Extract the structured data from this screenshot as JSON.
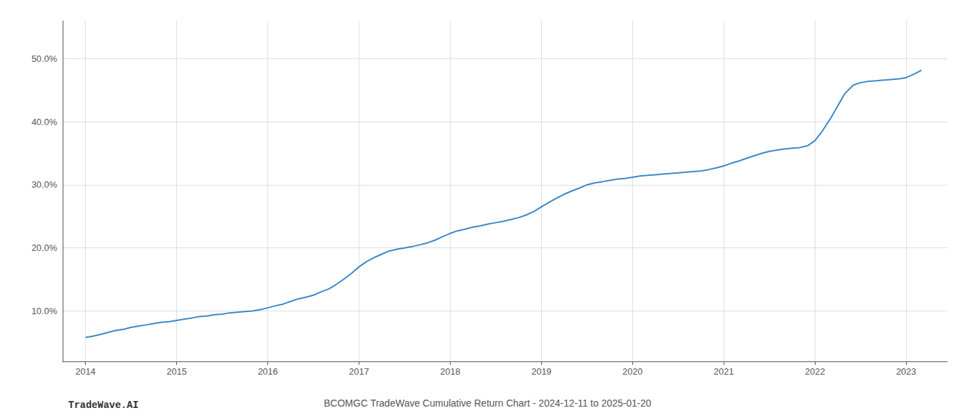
{
  "chart_data": {
    "type": "line",
    "title": "BCOMGC TradeWave Cumulative Return Chart - 2024-12-11 to 2025-01-20",
    "annotations": [
      "TradeWave.AI"
    ],
    "color": "#3a87c8",
    "grid": true,
    "x": [
      2014.0,
      2014.08,
      2014.17,
      2014.25,
      2014.33,
      2014.42,
      2014.5,
      2014.58,
      2014.67,
      2014.75,
      2014.83,
      2014.92,
      2015.0,
      2015.08,
      2015.17,
      2015.25,
      2015.33,
      2015.42,
      2015.5,
      2015.58,
      2015.67,
      2015.75,
      2015.83,
      2015.92,
      2016.0,
      2016.08,
      2016.17,
      2016.25,
      2016.33,
      2016.42,
      2016.5,
      2016.58,
      2016.67,
      2016.75,
      2016.83,
      2016.92,
      2017.0,
      2017.08,
      2017.17,
      2017.25,
      2017.33,
      2017.42,
      2017.5,
      2017.58,
      2017.67,
      2017.75,
      2017.83,
      2017.92,
      2018.0,
      2018.08,
      2018.17,
      2018.25,
      2018.33,
      2018.42,
      2018.5,
      2018.58,
      2018.67,
      2018.75,
      2018.83,
      2018.92,
      2019.0,
      2019.08,
      2019.17,
      2019.25,
      2019.33,
      2019.42,
      2019.5,
      2019.58,
      2019.67,
      2019.75,
      2019.83,
      2019.92,
      2020.0,
      2020.08,
      2020.17,
      2020.25,
      2020.33,
      2020.42,
      2020.5,
      2020.58,
      2020.67,
      2020.75,
      2020.83,
      2020.92,
      2021.0,
      2021.08,
      2021.17,
      2021.25,
      2021.33,
      2021.42,
      2021.5,
      2021.58,
      2021.67,
      2021.75,
      2021.83,
      2021.92,
      2022.0,
      2022.08,
      2022.17,
      2022.25,
      2022.33,
      2022.42,
      2022.5,
      2022.58,
      2022.67,
      2022.75,
      2022.83,
      2022.92,
      2023.0,
      2023.08,
      2023.17
    ],
    "values": [
      5.8,
      6.0,
      6.3,
      6.6,
      6.9,
      7.1,
      7.4,
      7.6,
      7.8,
      8.0,
      8.2,
      8.3,
      8.5,
      8.7,
      8.9,
      9.1,
      9.2,
      9.4,
      9.5,
      9.7,
      9.8,
      9.9,
      10.0,
      10.2,
      10.5,
      10.8,
      11.1,
      11.5,
      11.9,
      12.2,
      12.5,
      13.0,
      13.5,
      14.2,
      15.0,
      16.0,
      17.0,
      17.8,
      18.5,
      19.0,
      19.5,
      19.8,
      20.0,
      20.2,
      20.5,
      20.8,
      21.2,
      21.8,
      22.3,
      22.7,
      23.0,
      23.3,
      23.5,
      23.8,
      24.0,
      24.2,
      24.5,
      24.8,
      25.2,
      25.8,
      26.5,
      27.2,
      27.9,
      28.5,
      29.0,
      29.5,
      30.0,
      30.3,
      30.5,
      30.7,
      30.9,
      31.0,
      31.2,
      31.4,
      31.5,
      31.6,
      31.7,
      31.8,
      31.9,
      32.0,
      32.1,
      32.2,
      32.4,
      32.7,
      33.0,
      33.4,
      33.8,
      34.2,
      34.6,
      35.0,
      35.3,
      35.5,
      35.7,
      35.8,
      35.9,
      36.2,
      37.0,
      38.5,
      40.5,
      42.5,
      44.5,
      45.8,
      46.2,
      46.4,
      46.5,
      46.6,
      46.7,
      46.8,
      47.0,
      47.5,
      48.2
    ],
    "xlim": [
      2013.75,
      2023.45
    ],
    "xticks": [
      2014,
      2015,
      2016,
      2017,
      2018,
      2019,
      2020,
      2021,
      2022,
      2023
    ],
    "ylim": [
      2.0,
      56.0
    ],
    "yticks": [
      {
        "value": 10.0,
        "label": "10.0%"
      },
      {
        "value": 20.0,
        "label": "20.0%"
      },
      {
        "value": 30.0,
        "label": "30.0%"
      },
      {
        "value": 40.0,
        "label": "40.0%"
      },
      {
        "value": 50.0,
        "label": "50.0%"
      }
    ]
  }
}
